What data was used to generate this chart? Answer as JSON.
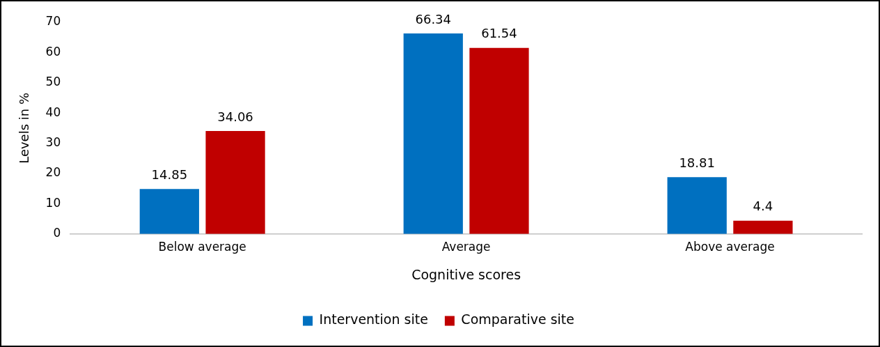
{
  "chart_data": {
    "type": "bar",
    "xlabel": "Cognitive scores",
    "ylabel": "Levels in %",
    "categories": [
      "Below average",
      "Average",
      "Above average"
    ],
    "series": [
      {
        "name": "Intervention site",
        "color": "#0070c0",
        "values": [
          14.85,
          66.34,
          18.81
        ]
      },
      {
        "name": "Comparative site",
        "color": "#c00000",
        "values": [
          34.06,
          61.54,
          4.4
        ]
      }
    ],
    "ylim": [
      0,
      70
    ],
    "yticks": [
      0,
      10,
      20,
      30,
      40,
      50,
      60,
      70
    ],
    "grid": false,
    "legend": "bottom",
    "data_labels": true
  }
}
